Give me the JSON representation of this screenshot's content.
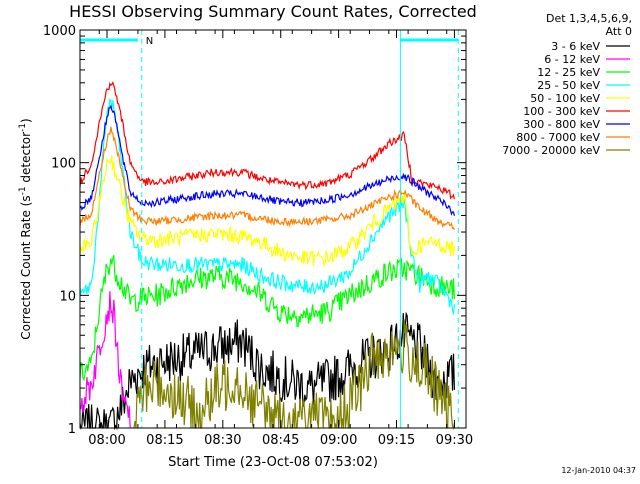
{
  "chart_data": {
    "type": "line",
    "title": "HESSI Observing Summary Count Rates, Corrected",
    "xlabel": "Start Time (23-Oct-08 07:53:02)",
    "ylabel_parts": [
      "Corrected Count Rate (s",
      "-1",
      " detector",
      "-1",
      ")"
    ],
    "xscale": "linear",
    "xunit": "minutes after 07:53:02",
    "yscale": "log",
    "xlim": [
      0,
      100
    ],
    "ylim": [
      1,
      1000
    ],
    "xticks": [
      {
        "label": "08:00",
        "value": 7
      },
      {
        "label": "08:15",
        "value": 22
      },
      {
        "label": "08:30",
        "value": 37
      },
      {
        "label": "08:45",
        "value": 52
      },
      {
        "label": "09:00",
        "value": 67
      },
      {
        "label": "09:15",
        "value": 82
      },
      {
        "label": "09:30",
        "value": 97
      }
    ],
    "yticks": [
      {
        "label": "1",
        "value": 1
      },
      {
        "label": "10",
        "value": 10
      },
      {
        "label": "100",
        "value": 100
      },
      {
        "label": "1000",
        "value": 1000
      }
    ],
    "legend_header": [
      "Det 1,3,4,5,6,9,",
      "Att 0"
    ],
    "legend_position": "right, outside plot",
    "timestamp": "12-Jan-2010 04:37",
    "annotations": {
      "attenuator_bar": {
        "color": "#00ffff",
        "segments": [
          [
            0,
            15
          ],
          [
            83,
            98
          ]
        ]
      },
      "night_label": "N",
      "night_start": 16,
      "vlines": [
        {
          "x": 16,
          "style": "dashed",
          "color": "#00ffff"
        },
        {
          "x": 83,
          "style": "solid",
          "color": "#00ffff"
        },
        {
          "x": 98,
          "style": "dashed",
          "color": "#00ffff"
        }
      ]
    },
    "series": [
      {
        "name": "3 - 6 keV",
        "color": "#000000",
        "x": [
          0,
          5,
          8,
          11,
          13,
          16,
          20,
          28,
          35,
          42,
          47,
          55,
          60,
          66,
          72,
          80,
          84,
          88,
          92,
          97
        ],
        "y": [
          1,
          1,
          1,
          1.5,
          2.2,
          2.8,
          3.1,
          3.5,
          4.0,
          4.5,
          2.8,
          2.2,
          2.0,
          2.4,
          3.0,
          4.0,
          5.0,
          4.0,
          2.2,
          2.5
        ]
      },
      {
        "name": "6 - 12 keV",
        "color": "#ff00ff",
        "x": [
          0,
          3,
          5,
          7,
          8,
          9,
          10,
          11,
          13
        ],
        "y": [
          1.5,
          2.2,
          4.0,
          7.5,
          9.0,
          6.5,
          3.0,
          1.6,
          1.2
        ]
      },
      {
        "name": "12 - 25 keV",
        "color": "#00ff00",
        "x": [
          0,
          3,
          5,
          7,
          8,
          9,
          11,
          13,
          16,
          20,
          28,
          35,
          42,
          47,
          52,
          58,
          64,
          70,
          76,
          80,
          84,
          88,
          92,
          97
        ],
        "y": [
          2.5,
          3.0,
          8.0,
          16,
          19,
          16,
          12,
          9.0,
          9.5,
          10,
          13,
          14,
          13,
          10,
          7.5,
          7.0,
          7.5,
          10,
          13,
          15,
          16,
          14,
          12,
          11
        ]
      },
      {
        "name": "25 - 50 keV",
        "color": "#00ffff",
        "x": [
          0,
          3,
          5,
          7,
          8,
          9,
          11,
          13,
          16,
          20,
          28,
          35,
          42,
          47,
          52,
          58,
          64,
          70,
          76,
          80,
          84,
          86,
          88,
          90,
          93,
          95,
          97
        ],
        "y": [
          10,
          12,
          50,
          250,
          290,
          240,
          90,
          30,
          18,
          17,
          17,
          17,
          17,
          14,
          12.5,
          11.5,
          12,
          15,
          28,
          40,
          50,
          20,
          12,
          14,
          12,
          10,
          8
        ]
      },
      {
        "name": "50 - 100 keV",
        "color": "#ffff00",
        "x": [
          0,
          3,
          5,
          7,
          8,
          9,
          11,
          13,
          16,
          20,
          28,
          35,
          42,
          47,
          52,
          58,
          64,
          70,
          76,
          80,
          84,
          86,
          88,
          92,
          97
        ],
        "y": [
          22,
          25,
          50,
          100,
          110,
          90,
          55,
          35,
          27,
          26,
          28,
          29,
          28,
          25,
          21,
          19,
          19,
          23,
          35,
          45,
          55,
          20,
          24,
          25,
          22
        ]
      },
      {
        "name": "100 - 300 keV",
        "color": "#ff0000",
        "x": [
          0,
          3,
          5,
          7,
          8,
          9,
          11,
          13,
          16,
          20,
          28,
          35,
          42,
          47,
          52,
          58,
          64,
          70,
          76,
          80,
          84,
          86,
          90,
          93,
          97
        ],
        "y": [
          70,
          100,
          200,
          360,
          400,
          360,
          200,
          100,
          72,
          70,
          78,
          85,
          85,
          76,
          70,
          68,
          70,
          82,
          110,
          140,
          160,
          75,
          68,
          65,
          55
        ]
      },
      {
        "name": "300 - 800 keV",
        "color": "#0000ff",
        "x": [
          0,
          3,
          5,
          7,
          8,
          9,
          11,
          13,
          16,
          20,
          28,
          35,
          42,
          47,
          52,
          58,
          64,
          70,
          76,
          80,
          84,
          88,
          92,
          97
        ],
        "y": [
          45,
          55,
          110,
          220,
          280,
          230,
          110,
          60,
          50,
          50,
          55,
          58,
          58,
          55,
          50,
          50,
          52,
          58,
          68,
          75,
          80,
          65,
          55,
          42
        ]
      },
      {
        "name": "800 - 7000 keV",
        "color": "#ff8000",
        "x": [
          0,
          3,
          5,
          7,
          8,
          9,
          11,
          13,
          16,
          20,
          28,
          35,
          42,
          47,
          52,
          58,
          64,
          70,
          76,
          80,
          84,
          88,
          92,
          97
        ],
        "y": [
          35,
          42,
          80,
          150,
          180,
          150,
          80,
          45,
          37,
          36,
          38,
          40,
          40,
          38,
          36,
          36,
          37,
          40,
          48,
          55,
          60,
          45,
          38,
          32
        ]
      },
      {
        "name": "7000 - 20000 keV",
        "color": "#808000",
        "x": [
          14,
          16,
          20,
          25,
          28,
          30,
          35,
          40,
          45,
          50,
          55,
          60,
          65,
          70,
          74,
          76,
          80,
          84,
          88,
          92,
          96,
          97
        ],
        "y": [
          1.0,
          1.8,
          2.2,
          1.8,
          1.5,
          1.2,
          1.8,
          2.5,
          1.6,
          1.2,
          1.0,
          1.2,
          1.0,
          1.5,
          2.5,
          3.5,
          3.8,
          4.0,
          3.0,
          2.0,
          1.2,
          1.0
        ]
      }
    ]
  }
}
